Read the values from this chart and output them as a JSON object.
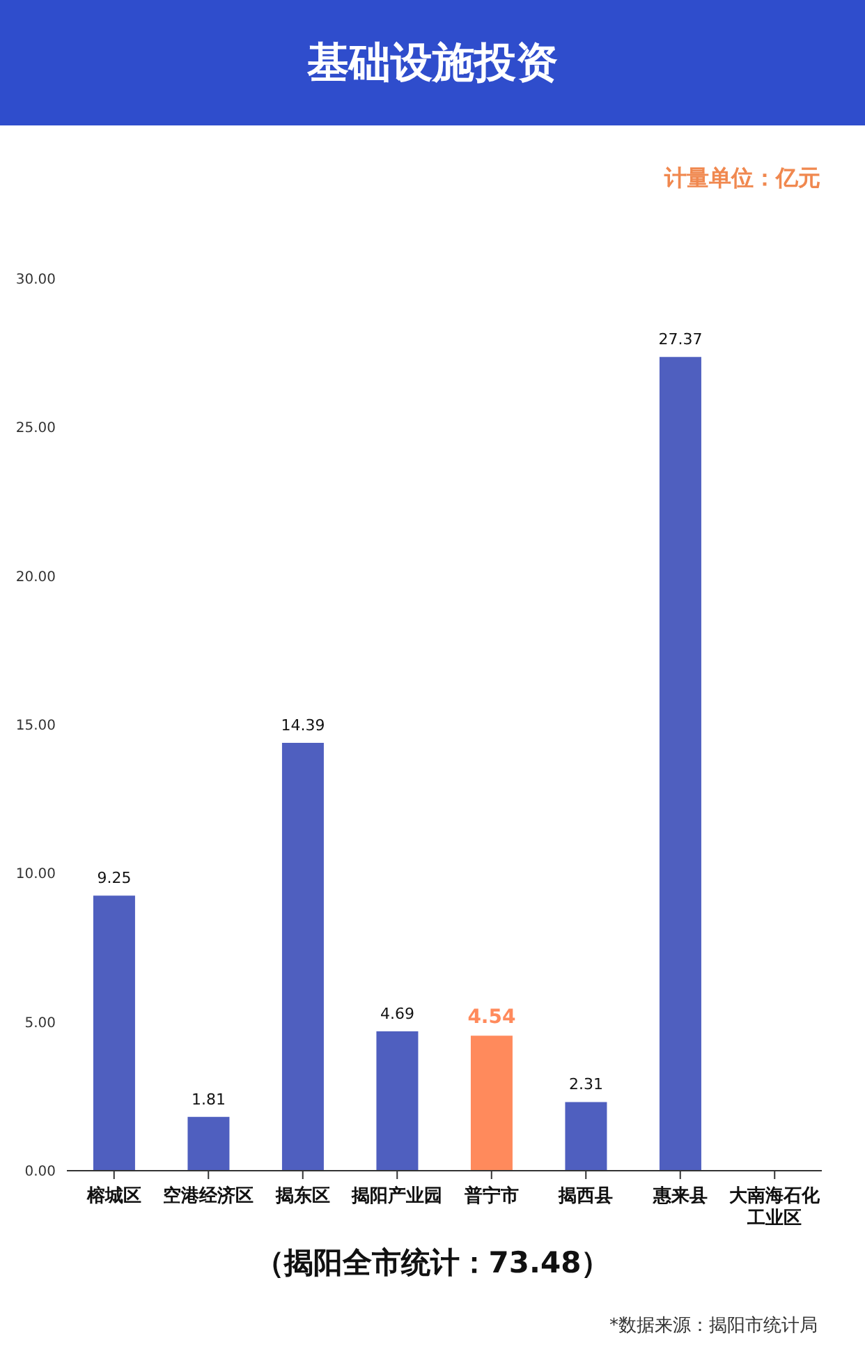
{
  "chart_data": {
    "type": "bar",
    "title": "基础设施投资",
    "subtitle": "计量单位：亿元",
    "categories": [
      "榕城区",
      "空港经济区",
      "揭东区",
      "揭阳产业园",
      "普宁市",
      "揭西县",
      "惠来县",
      "大南海石化工业区"
    ],
    "values": [
      9.25,
      1.81,
      14.39,
      4.69,
      4.54,
      2.31,
      27.37,
      null
    ],
    "colors": [
      "#4f5fbf",
      "#4f5fbf",
      "#4f5fbf",
      "#4f5fbf",
      "#ff8a5c",
      "#4f5fbf",
      "#4f5fbf",
      "#4f5fbf"
    ],
    "ylim": [
      0,
      30
    ],
    "yticks": [
      {
        "value": 0,
        "label": "0.00"
      },
      {
        "value": 5,
        "label": "5.00"
      },
      {
        "value": 10,
        "label": "10.00"
      },
      {
        "value": 15,
        "label": "15.00"
      },
      {
        "value": 20,
        "label": "20.00"
      },
      {
        "value": 25,
        "label": "25.00"
      },
      {
        "value": 30,
        "label": "30.00"
      }
    ],
    "grid": false,
    "legend": false,
    "data_labels": true,
    "annotations": [
      "（揭阳全市统计：73.48）",
      "*数据来源：揭阳市统计局"
    ]
  }
}
